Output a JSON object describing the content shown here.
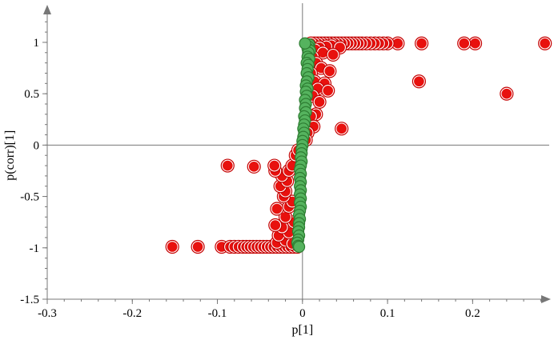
{
  "chart_data": {
    "type": "scatter",
    "title": "",
    "xlabel": "p[1]",
    "ylabel": "p(corr)[1]",
    "xlim": [
      -0.3,
      0.29
    ],
    "ylim": [
      -1.5,
      1.35
    ],
    "x_ticks": [
      {
        "value": -0.3,
        "label": "-0.3"
      },
      {
        "value": -0.2,
        "label": "-0.2"
      },
      {
        "value": -0.1,
        "label": "-0.1"
      },
      {
        "value": 0,
        "label": "0"
      },
      {
        "value": 0.1,
        "label": "0.1"
      },
      {
        "value": 0.2,
        "label": "0.2"
      }
    ],
    "y_ticks": [
      {
        "value": -1.5,
        "label": "-1.5"
      },
      {
        "value": -1,
        "label": "-1"
      },
      {
        "value": -0.5,
        "label": "-0.5"
      },
      {
        "value": 0,
        "label": "0"
      },
      {
        "value": 0.5,
        "label": "0.5"
      },
      {
        "value": 1,
        "label": "1"
      }
    ],
    "grid": false,
    "legend": "none",
    "series": [
      {
        "color": "#e8110e",
        "points": [
          [
            0.285,
            0.99
          ],
          [
            0.203,
            0.99
          ],
          [
            0.19,
            0.99
          ],
          [
            0.14,
            0.99
          ],
          [
            0.137,
            0.62
          ],
          [
            0.24,
            0.5
          ],
          [
            0.046,
            0.16
          ],
          [
            0.112,
            0.99
          ],
          [
            0.1,
            0.99
          ],
          [
            0.095,
            0.99
          ],
          [
            0.09,
            0.99
          ],
          [
            0.085,
            0.99
          ],
          [
            0.08,
            0.99
          ],
          [
            0.075,
            0.99
          ],
          [
            0.07,
            0.99
          ],
          [
            0.066,
            0.99
          ],
          [
            0.062,
            0.99
          ],
          [
            0.058,
            0.99
          ],
          [
            0.054,
            0.99
          ],
          [
            0.05,
            0.99
          ],
          [
            0.046,
            0.99
          ],
          [
            0.042,
            0.99
          ],
          [
            0.038,
            0.99
          ],
          [
            0.034,
            0.99
          ],
          [
            0.03,
            0.99
          ],
          [
            0.026,
            0.99
          ],
          [
            0.022,
            0.99
          ],
          [
            0.018,
            0.99
          ],
          [
            0.014,
            0.99
          ],
          [
            0.01,
            0.99
          ],
          [
            0.034,
            0.97
          ],
          [
            0.028,
            0.96
          ],
          [
            0.02,
            0.95
          ],
          [
            0.044,
            0.95
          ],
          [
            0.015,
            0.93
          ],
          [
            0.024,
            0.9
          ],
          [
            0.036,
            0.88
          ],
          [
            0.012,
            0.86
          ],
          [
            0.016,
            0.8
          ],
          [
            0.022,
            0.75
          ],
          [
            0.032,
            0.72
          ],
          [
            0.01,
            0.7
          ],
          [
            0.014,
            0.62
          ],
          [
            0.026,
            0.6
          ],
          [
            0.018,
            0.55
          ],
          [
            0.03,
            0.53
          ],
          [
            0.012,
            0.48
          ],
          [
            0.02,
            0.42
          ],
          [
            0.016,
            0.3
          ],
          [
            0.01,
            0.28
          ],
          [
            0.013,
            0.18
          ],
          [
            0.006,
            0.12
          ],
          [
            0.004,
            0.05
          ],
          [
            -0.153,
            -0.99
          ],
          [
            -0.123,
            -0.99
          ],
          [
            -0.095,
            -0.99
          ],
          [
            -0.085,
            -0.99
          ],
          [
            -0.08,
            -0.99
          ],
          [
            -0.075,
            -0.99
          ],
          [
            -0.07,
            -0.99
          ],
          [
            -0.066,
            -0.99
          ],
          [
            -0.062,
            -0.99
          ],
          [
            -0.058,
            -0.99
          ],
          [
            -0.054,
            -0.99
          ],
          [
            -0.05,
            -0.99
          ],
          [
            -0.046,
            -0.99
          ],
          [
            -0.042,
            -0.99
          ],
          [
            -0.038,
            -0.99
          ],
          [
            -0.034,
            -0.99
          ],
          [
            -0.03,
            -0.99
          ],
          [
            -0.026,
            -0.99
          ],
          [
            -0.022,
            -0.99
          ],
          [
            -0.018,
            -0.99
          ],
          [
            -0.014,
            -0.99
          ],
          [
            -0.01,
            -0.99
          ],
          [
            -0.006,
            -0.99
          ],
          [
            -0.03,
            -0.95
          ],
          [
            -0.02,
            -0.93
          ],
          [
            -0.012,
            -0.96
          ],
          [
            -0.028,
            -0.88
          ],
          [
            -0.016,
            -0.85
          ],
          [
            -0.024,
            -0.8
          ],
          [
            -0.032,
            -0.78
          ],
          [
            -0.01,
            -0.75
          ],
          [
            -0.02,
            -0.7
          ],
          [
            -0.03,
            -0.62
          ],
          [
            -0.016,
            -0.6
          ],
          [
            -0.012,
            -0.55
          ],
          [
            -0.022,
            -0.5
          ],
          [
            -0.02,
            -0.45
          ],
          [
            -0.026,
            -0.4
          ],
          [
            -0.018,
            -0.35
          ],
          [
            -0.024,
            -0.3
          ],
          [
            -0.016,
            -0.25
          ],
          [
            -0.032,
            -0.25
          ],
          [
            -0.012,
            -0.2
          ],
          [
            -0.088,
            -0.2
          ],
          [
            -0.057,
            -0.21
          ],
          [
            -0.033,
            -0.2
          ],
          [
            -0.008,
            -0.1
          ],
          [
            -0.005,
            -0.05
          ]
        ]
      },
      {
        "color": "#55b35e",
        "points": [
          [
            0.008,
            0.98
          ],
          [
            0.007,
            0.96
          ],
          [
            0.006,
            0.94
          ],
          [
            0.009,
            0.92
          ],
          [
            0.007,
            0.9
          ],
          [
            0.006,
            0.86
          ],
          [
            0.008,
            0.84
          ],
          [
            0.005,
            0.8
          ],
          [
            0.007,
            0.78
          ],
          [
            0.006,
            0.74
          ],
          [
            0.005,
            0.7
          ],
          [
            0.007,
            0.66
          ],
          [
            0.005,
            0.62
          ],
          [
            0.004,
            0.58
          ],
          [
            0.006,
            0.55
          ],
          [
            0.004,
            0.52
          ],
          [
            0.005,
            0.48
          ],
          [
            0.003,
            0.44
          ],
          [
            0.004,
            0.4
          ],
          [
            0.003,
            0.36
          ],
          [
            0.004,
            0.32
          ],
          [
            0.002,
            0.28
          ],
          [
            0.003,
            0.24
          ],
          [
            0.002,
            0.2
          ],
          [
            0.001,
            0.16
          ],
          [
            0.002,
            0.12
          ],
          [
            0.001,
            0.08
          ],
          [
            0.0,
            0.04
          ],
          [
            0.0,
            0.0
          ],
          [
            -0.001,
            -0.04
          ],
          [
            -0.001,
            -0.08
          ],
          [
            -0.002,
            -0.12
          ],
          [
            -0.001,
            -0.16
          ],
          [
            -0.002,
            -0.2
          ],
          [
            -0.003,
            -0.24
          ],
          [
            -0.002,
            -0.28
          ],
          [
            -0.003,
            -0.32
          ],
          [
            -0.002,
            -0.36
          ],
          [
            -0.003,
            -0.4
          ],
          [
            -0.002,
            -0.44
          ],
          [
            -0.003,
            -0.48
          ],
          [
            -0.002,
            -0.52
          ],
          [
            -0.003,
            -0.56
          ],
          [
            -0.002,
            -0.6
          ],
          [
            -0.003,
            -0.64
          ],
          [
            -0.004,
            -0.68
          ],
          [
            -0.003,
            -0.72
          ],
          [
            -0.004,
            -0.76
          ],
          [
            -0.004,
            -0.8
          ],
          [
            -0.005,
            -0.84
          ],
          [
            -0.004,
            -0.88
          ],
          [
            -0.005,
            -0.92
          ],
          [
            -0.006,
            -0.95
          ],
          [
            -0.005,
            -0.98
          ],
          [
            0.003,
            0.99
          ],
          [
            -0.004,
            -0.99
          ]
        ]
      }
    ]
  }
}
